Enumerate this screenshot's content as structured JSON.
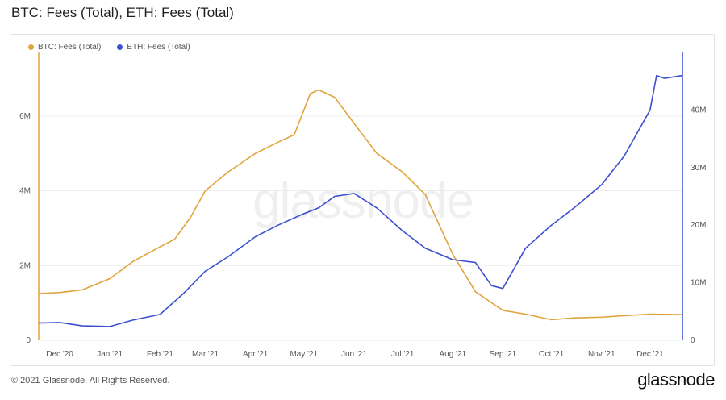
{
  "title": "BTC: Fees (Total), ETH: Fees (Total)",
  "watermark": "glassnode",
  "footer": {
    "copyright": "© 2021 Glassnode. All Rights Reserved.",
    "brand": "glassnode"
  },
  "colors": {
    "btc": "#e0a43c",
    "eth": "#3c4fd0",
    "grid": "#ececec"
  },
  "chart_data": {
    "type": "line",
    "x_labels": [
      "Dec '20",
      "Jan '21",
      "Feb '21",
      "Mar '21",
      "Apr '21",
      "May '21",
      "Jun '21",
      "Jul '21",
      "Aug '21",
      "Sep '21",
      "Oct '21",
      "Nov '21",
      "Dec '21"
    ],
    "x_label_dates": [
      "2020-12-01",
      "2021-01-01",
      "2021-02-01",
      "2021-03-01",
      "2021-04-01",
      "2021-05-01",
      "2021-06-01",
      "2021-07-01",
      "2021-08-01",
      "2021-09-01",
      "2021-10-01",
      "2021-11-01",
      "2021-12-01"
    ],
    "x_range": [
      "2020-11-18",
      "2021-12-21"
    ],
    "y_left": {
      "ticks": [
        0,
        2000000,
        4000000,
        6000000
      ],
      "tick_labels": [
        "0",
        "2M",
        "4M",
        "6M"
      ],
      "range": [
        0,
        7700000
      ]
    },
    "y_right": {
      "ticks": [
        0,
        10000000,
        20000000,
        30000000,
        40000000
      ],
      "tick_labels": [
        "0",
        "10M",
        "20M",
        "30M",
        "40M"
      ],
      "range": [
        0,
        50000000
      ]
    },
    "grid": true,
    "legend_position": "top-left",
    "series": [
      {
        "name": "BTC: Fees (Total)",
        "axis": "left",
        "x": [
          "2020-11-18",
          "2020-12-01",
          "2020-12-15",
          "2021-01-01",
          "2021-01-15",
          "2021-02-01",
          "2021-02-10",
          "2021-02-20",
          "2021-03-01",
          "2021-03-15",
          "2021-04-01",
          "2021-04-15",
          "2021-04-25",
          "2021-05-05",
          "2021-05-10",
          "2021-05-20",
          "2021-06-01",
          "2021-06-15",
          "2021-07-01",
          "2021-07-15",
          "2021-08-01",
          "2021-08-15",
          "2021-09-01",
          "2021-09-15",
          "2021-10-01",
          "2021-10-15",
          "2021-11-01",
          "2021-11-15",
          "2021-12-01",
          "2021-12-21"
        ],
        "y": [
          1250000,
          1280000,
          1350000,
          1650000,
          2100000,
          2500000,
          2700000,
          3300000,
          4000000,
          4500000,
          5000000,
          5300000,
          5500000,
          6600000,
          6700000,
          6500000,
          5800000,
          5000000,
          4500000,
          3900000,
          2300000,
          1300000,
          800000,
          700000,
          550000,
          600000,
          620000,
          660000,
          700000,
          690000
        ]
      },
      {
        "name": "ETH: Fees (Total)",
        "axis": "right",
        "x": [
          "2020-11-18",
          "2020-12-01",
          "2020-12-15",
          "2021-01-01",
          "2021-01-15",
          "2021-02-01",
          "2021-02-15",
          "2021-03-01",
          "2021-03-15",
          "2021-04-01",
          "2021-04-15",
          "2021-05-01",
          "2021-05-10",
          "2021-05-20",
          "2021-06-01",
          "2021-06-15",
          "2021-07-01",
          "2021-07-15",
          "2021-08-01",
          "2021-08-15",
          "2021-08-25",
          "2021-09-01",
          "2021-09-15",
          "2021-10-01",
          "2021-10-15",
          "2021-11-01",
          "2021-11-15",
          "2021-12-01",
          "2021-12-05",
          "2021-12-10",
          "2021-12-21"
        ],
        "y": [
          3000000,
          3100000,
          2500000,
          2400000,
          3500000,
          4500000,
          8000000,
          12000000,
          14500000,
          18000000,
          20000000,
          22000000,
          23000000,
          25000000,
          25500000,
          23000000,
          19000000,
          16000000,
          14000000,
          13500000,
          9500000,
          9000000,
          16000000,
          20000000,
          23000000,
          27000000,
          32000000,
          40000000,
          46000000,
          45500000,
          46000000
        ]
      }
    ]
  }
}
